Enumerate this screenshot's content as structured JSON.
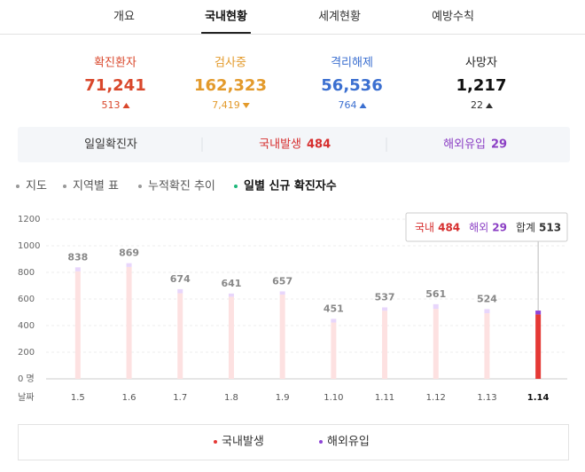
{
  "tabs": {
    "items": [
      "개요",
      "국내현황",
      "세계현황",
      "예방수칙"
    ],
    "active": 1
  },
  "stats": [
    {
      "label": "확진환자",
      "value": "71,241",
      "change": "513",
      "direction": "up",
      "color": "#d9472b"
    },
    {
      "label": "검사중",
      "value": "162,323",
      "change": "7,419",
      "direction": "down",
      "color": "#e39a2b"
    },
    {
      "label": "격리해제",
      "value": "56,536",
      "change": "764",
      "direction": "up",
      "color": "#3b6fd0"
    },
    {
      "label": "사망자",
      "value": "1,217",
      "change": "22",
      "direction": "up",
      "color": "#111111"
    }
  ],
  "summary": {
    "title": "일일확진자",
    "items": [
      {
        "label": "국내발생",
        "value": "484",
        "color": "#d62e2e"
      },
      {
        "label": "해외유입",
        "value": "29",
        "color": "#8b3fc4"
      }
    ]
  },
  "subtabs": {
    "items": [
      "지도",
      "지역별 표",
      "누적확진 추이",
      "일별 신규 확진자수"
    ],
    "active": 3
  },
  "chart_data": {
    "type": "stacked_bar",
    "x_label": "날짜",
    "categories": [
      "1.5",
      "1.6",
      "1.7",
      "1.8",
      "1.9",
      "1.10",
      "1.11",
      "1.12",
      "1.13",
      "1.14"
    ],
    "series": [
      {
        "name": "국내발생",
        "color": "#e53935",
        "faded_color": "#fde1e1",
        "values": [
          808,
          841,
          643,
          617,
          633,
          423,
          512,
          526,
          493,
          484
        ]
      },
      {
        "name": "해외유입",
        "color": "#8e44d6",
        "faded_color": "#e8d6fb",
        "values": [
          30,
          28,
          31,
          24,
          24,
          28,
          25,
          35,
          31,
          29
        ]
      }
    ],
    "totals": [
      838,
      869,
      674,
      641,
      657,
      451,
      537,
      561,
      524,
      513
    ],
    "highlight": 9,
    "tooltip": {
      "labels": [
        "국내",
        "해외",
        "합계"
      ]
    },
    "ylim": [
      0,
      1200
    ],
    "yticks": [
      {
        "value": 0,
        "label": "0 명"
      },
      200,
      400,
      600,
      800,
      1000,
      1200
    ],
    "grid": true
  }
}
